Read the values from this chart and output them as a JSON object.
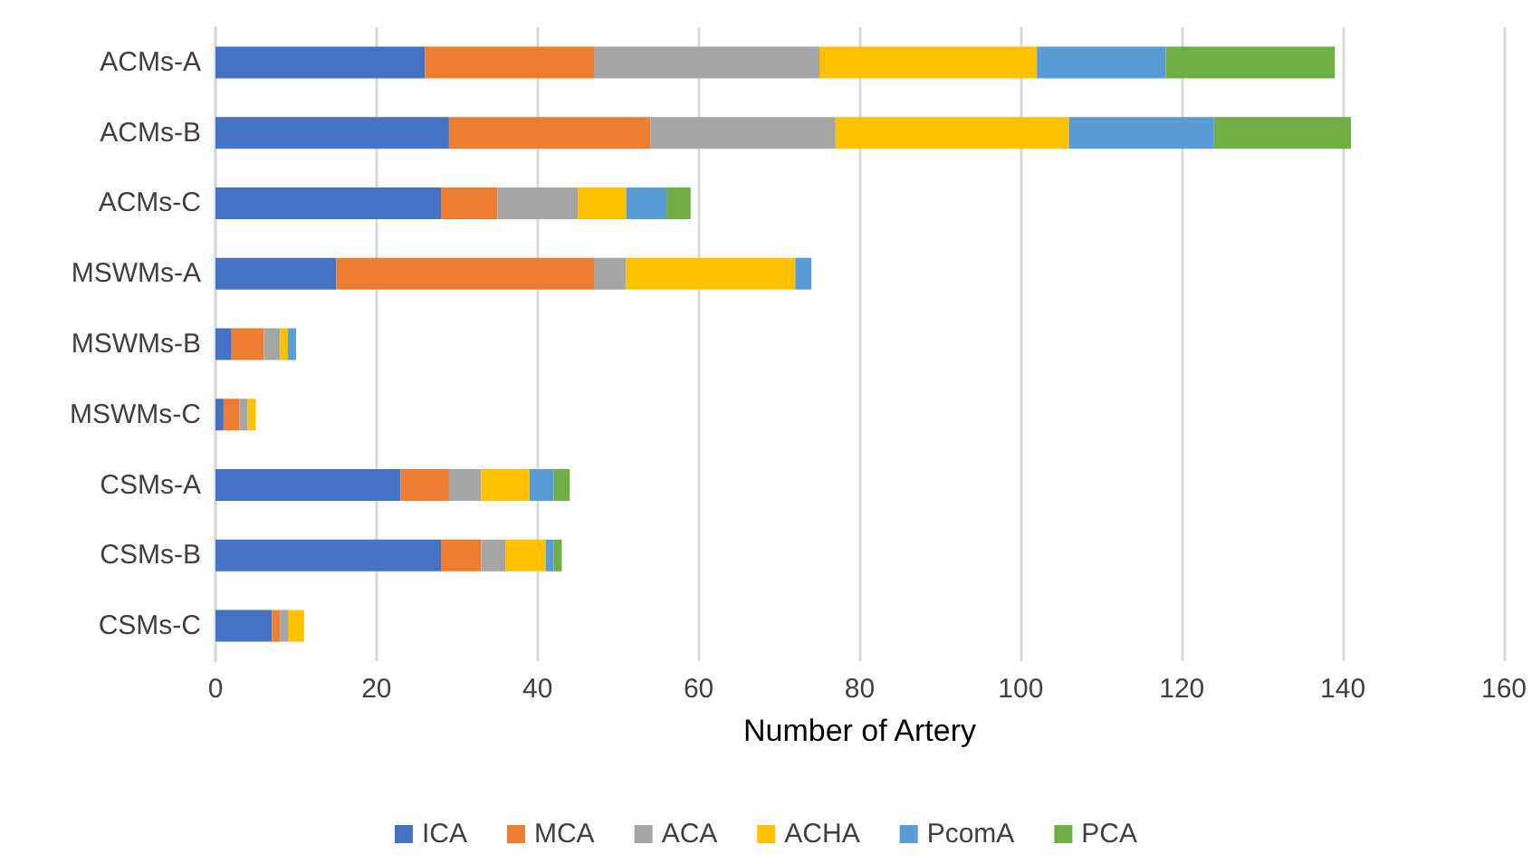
{
  "chart_data": {
    "type": "bar",
    "orientation": "horizontal",
    "stacked": true,
    "xlabel": "Number of Artery",
    "categories": [
      "ACMs-A",
      "ACMs-B",
      "ACMs-C",
      "MSWMs-A",
      "MSWMs-B",
      "MSWMs-C",
      "CSMs-A",
      "CSMs-B",
      "CSMs-C"
    ],
    "series": [
      {
        "name": "ICA",
        "color": "#4472c4",
        "values": [
          26,
          29,
          28,
          15,
          2,
          1,
          23,
          28,
          7
        ]
      },
      {
        "name": "MCA",
        "color": "#ed7d31",
        "values": [
          21,
          25,
          7,
          32,
          4,
          2,
          6,
          5,
          1
        ]
      },
      {
        "name": "ACA",
        "color": "#a5a5a5",
        "values": [
          28,
          23,
          10,
          4,
          2,
          1,
          4,
          3,
          1
        ]
      },
      {
        "name": "ACHA",
        "color": "#ffc000",
        "values": [
          27,
          29,
          6,
          21,
          1,
          1,
          6,
          5,
          2
        ]
      },
      {
        "name": "PcomA",
        "color": "#5b9bd5",
        "values": [
          16,
          18,
          5,
          2,
          1,
          0,
          3,
          1,
          0
        ]
      },
      {
        "name": "PCA",
        "color": "#70ad47",
        "values": [
          21,
          17,
          3,
          0,
          0,
          0,
          2,
          1,
          0
        ]
      }
    ],
    "xlim": [
      0,
      160
    ],
    "xticks": [
      0,
      20,
      40,
      60,
      80,
      100,
      120,
      140,
      160
    ],
    "grid": "x",
    "legend": "bottom"
  }
}
